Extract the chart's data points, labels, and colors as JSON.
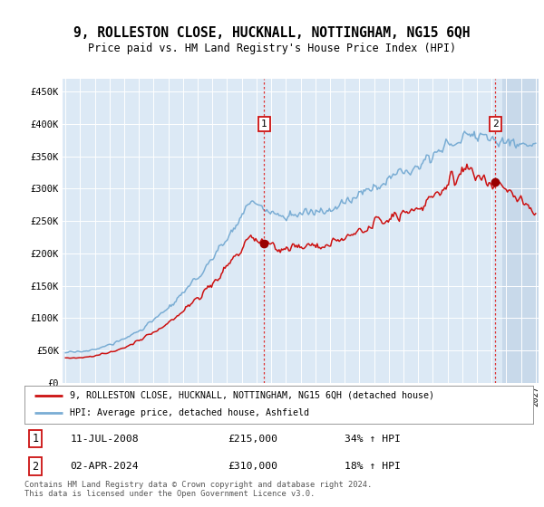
{
  "title": "9, ROLLESTON CLOSE, HUCKNALL, NOTTINGHAM, NG15 6QH",
  "subtitle": "Price paid vs. HM Land Registry's House Price Index (HPI)",
  "ylabel_values": [
    0,
    50000,
    100000,
    150000,
    200000,
    250000,
    300000,
    350000,
    400000,
    450000
  ],
  "ylim": [
    0,
    470000
  ],
  "xlim_start": 1994.8,
  "xlim_end": 2027.2,
  "bg_color": "#dce9f5",
  "hatch_color": "#c8d9ea",
  "grid_color": "#ffffff",
  "line_color_hpi": "#7aadd4",
  "line_color_price": "#cc1111",
  "marker1_date_x": 2008.53,
  "marker1_price": 215000,
  "marker1_date_label": "11-JUL-2008",
  "marker1_label": "£215,000",
  "marker1_hpi_pct": "34% ↑ HPI",
  "marker2_date_x": 2024.25,
  "marker2_price": 310000,
  "marker2_date_label": "02-APR-2024",
  "marker2_label": "£310,000",
  "marker2_hpi_pct": "18% ↑ HPI",
  "legend_line1": "9, ROLLESTON CLOSE, HUCKNALL, NOTTINGHAM, NG15 6QH (detached house)",
  "legend_line2": "HPI: Average price, detached house, Ashfield",
  "footer": "Contains HM Land Registry data © Crown copyright and database right 2024.\nThis data is licensed under the Open Government Licence v3.0."
}
